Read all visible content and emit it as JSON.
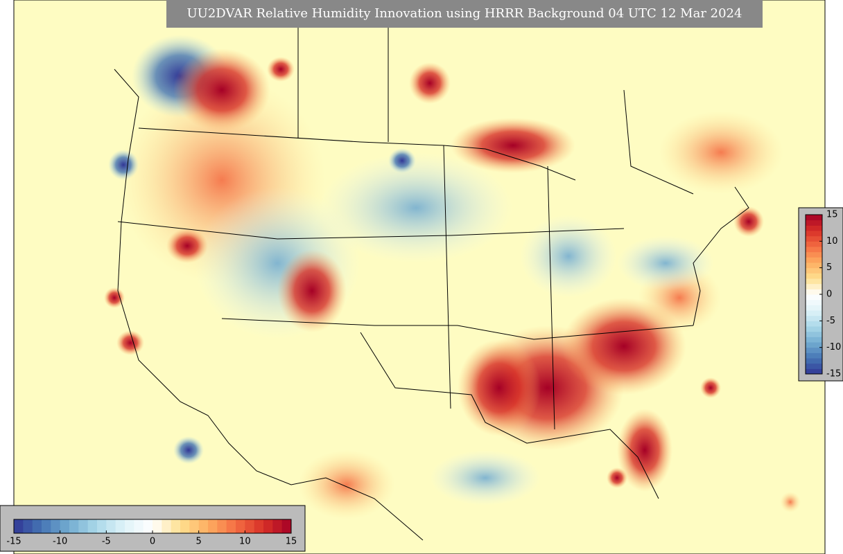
{
  "title": "UU2DVAR Relative Humidity Innovation using HRRR Background 04 UTC 12 Mar 2024",
  "colorbar": {
    "lim": [
      -15,
      15
    ],
    "ticks": [
      -15,
      -10,
      -5,
      0,
      5,
      10,
      15
    ],
    "colormap": [
      "#313695",
      "#4575b4",
      "#74add1",
      "#abd9e9",
      "#e0f3f8",
      "#ffffff",
      "#fee090",
      "#fdae61",
      "#f46d43",
      "#d73027",
      "#a50026"
    ]
  }
}
